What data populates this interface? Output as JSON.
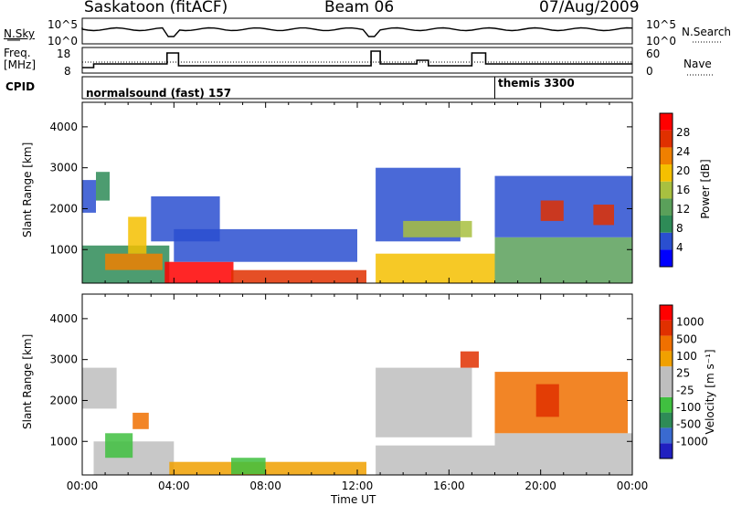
{
  "header": {
    "radar": "Saskatoon (fitACF)",
    "beam": "Beam 06",
    "date": "07/Aug/2009"
  },
  "noise_panel": {
    "left_label": "N.Sky",
    "right_label": "N.Search",
    "ticks": [
      "10^5",
      "10^0"
    ]
  },
  "freq_panel": {
    "left_label_1": "Freq.",
    "left_label_2": "[MHz]",
    "left_ticks": [
      "18",
      "8"
    ],
    "right_label": "Nave",
    "right_ticks": [
      "60",
      "0"
    ]
  },
  "cpid_panel": {
    "label": "CPID",
    "modes": [
      {
        "name": "normalsound (fast) 157",
        "start_hour": 0
      },
      {
        "name": "themis 3300",
        "start_hour": 18
      }
    ]
  },
  "colors": {
    "power": [
      "#0000ff",
      "#2a4fd0",
      "#2e8b57",
      "#5aa05a",
      "#a8c040",
      "#f5c000",
      "#f08000",
      "#e03000",
      "#ff0000"
    ],
    "velocity": [
      "#2020c0",
      "#3a6ad0",
      "#2e8b57",
      "#40c040",
      "#bebebe",
      "#bebebe",
      "#f0a000",
      "#f07000",
      "#e03000",
      "#ff0000"
    ]
  },
  "chart_data": [
    {
      "type": "heatmap",
      "panel": "power",
      "ylabel": "Slant Range [km]",
      "ylim": [
        180,
        4600
      ],
      "yticks": [
        "1000",
        "2000",
        "3000",
        "4000"
      ],
      "xlim": [
        0,
        24
      ],
      "colorbar": {
        "label": "Power [dB]",
        "ticks": [
          "28",
          "24",
          "20",
          "16",
          "12",
          "8",
          "4"
        ],
        "range": [
          0,
          30
        ]
      },
      "regions": [
        {
          "t0": 0.0,
          "t1": 0.6,
          "r0": 1900,
          "r1": 2700,
          "level": 1
        },
        {
          "t0": 0.6,
          "t1": 1.2,
          "r0": 2200,
          "r1": 2900,
          "level": 2
        },
        {
          "t0": 0.0,
          "t1": 3.8,
          "r0": 180,
          "r1": 1100,
          "level": 2
        },
        {
          "t0": 1.0,
          "t1": 3.5,
          "r0": 500,
          "r1": 900,
          "level": 6
        },
        {
          "t0": 2.0,
          "t1": 2.8,
          "r0": 900,
          "r1": 1800,
          "level": 5
        },
        {
          "t0": 3.0,
          "t1": 6.0,
          "r0": 1200,
          "r1": 2300,
          "level": 1
        },
        {
          "t0": 3.6,
          "t1": 6.6,
          "r0": 180,
          "r1": 700,
          "level": 8
        },
        {
          "t0": 6.5,
          "t1": 12.4,
          "r0": 180,
          "r1": 500,
          "level": 7
        },
        {
          "t0": 4.0,
          "t1": 12.0,
          "r0": 700,
          "r1": 1500,
          "level": 1
        },
        {
          "t0": 12.8,
          "t1": 18.0,
          "r0": 180,
          "r1": 900,
          "level": 5
        },
        {
          "t0": 12.8,
          "t1": 16.5,
          "r0": 1200,
          "r1": 3000,
          "level": 1
        },
        {
          "t0": 14.0,
          "t1": 17.0,
          "r0": 1300,
          "r1": 1700,
          "level": 4
        },
        {
          "t0": 18.0,
          "t1": 24.0,
          "r0": 180,
          "r1": 1300,
          "level": 3
        },
        {
          "t0": 18.0,
          "t1": 24.0,
          "r0": 1300,
          "r1": 2800,
          "level": 1
        },
        {
          "t0": 20.0,
          "t1": 21.0,
          "r0": 1700,
          "r1": 2200,
          "level": 7
        },
        {
          "t0": 22.3,
          "t1": 23.2,
          "r0": 1600,
          "r1": 2100,
          "level": 7
        }
      ]
    },
    {
      "type": "heatmap",
      "panel": "velocity",
      "ylabel": "Slant Range [km]",
      "xlabel": "Time UT",
      "ylim": [
        180,
        4600
      ],
      "yticks": [
        "1000",
        "2000",
        "3000",
        "4000"
      ],
      "xlim": [
        0,
        24
      ],
      "xticks": [
        "00:00",
        "04:00",
        "08:00",
        "12:00",
        "16:00",
        "20:00",
        "00:00"
      ],
      "colorbar": {
        "label": "Velocity [m s⁻¹]",
        "ticks": [
          "1000",
          "500",
          "100",
          "25",
          "-25",
          "-100",
          "-500",
          "-1000"
        ]
      },
      "regions": [
        {
          "t0": 0.0,
          "t1": 1.5,
          "r0": 1800,
          "r1": 2800,
          "level": 4
        },
        {
          "t0": 0.5,
          "t1": 4.0,
          "r0": 180,
          "r1": 1000,
          "level": 4
        },
        {
          "t0": 1.0,
          "t1": 2.2,
          "r0": 600,
          "r1": 1200,
          "level": 3
        },
        {
          "t0": 2.2,
          "t1": 2.9,
          "r0": 1300,
          "r1": 1700,
          "level": 7
        },
        {
          "t0": 3.8,
          "t1": 12.4,
          "r0": 180,
          "r1": 500,
          "level": 6
        },
        {
          "t0": 6.5,
          "t1": 8.0,
          "r0": 200,
          "r1": 600,
          "level": 3
        },
        {
          "t0": 12.8,
          "t1": 18.0,
          "r0": 180,
          "r1": 900,
          "level": 4
        },
        {
          "t0": 12.8,
          "t1": 17.0,
          "r0": 1100,
          "r1": 2800,
          "level": 4
        },
        {
          "t0": 18.0,
          "t1": 24.0,
          "r0": 180,
          "r1": 1200,
          "level": 4
        },
        {
          "t0": 18.0,
          "t1": 23.8,
          "r0": 1200,
          "r1": 2700,
          "level": 7
        },
        {
          "t0": 19.8,
          "t1": 20.8,
          "r0": 1600,
          "r1": 2400,
          "level": 8
        },
        {
          "t0": 16.5,
          "t1": 17.3,
          "r0": 2800,
          "r1": 3200,
          "level": 8
        }
      ]
    }
  ]
}
